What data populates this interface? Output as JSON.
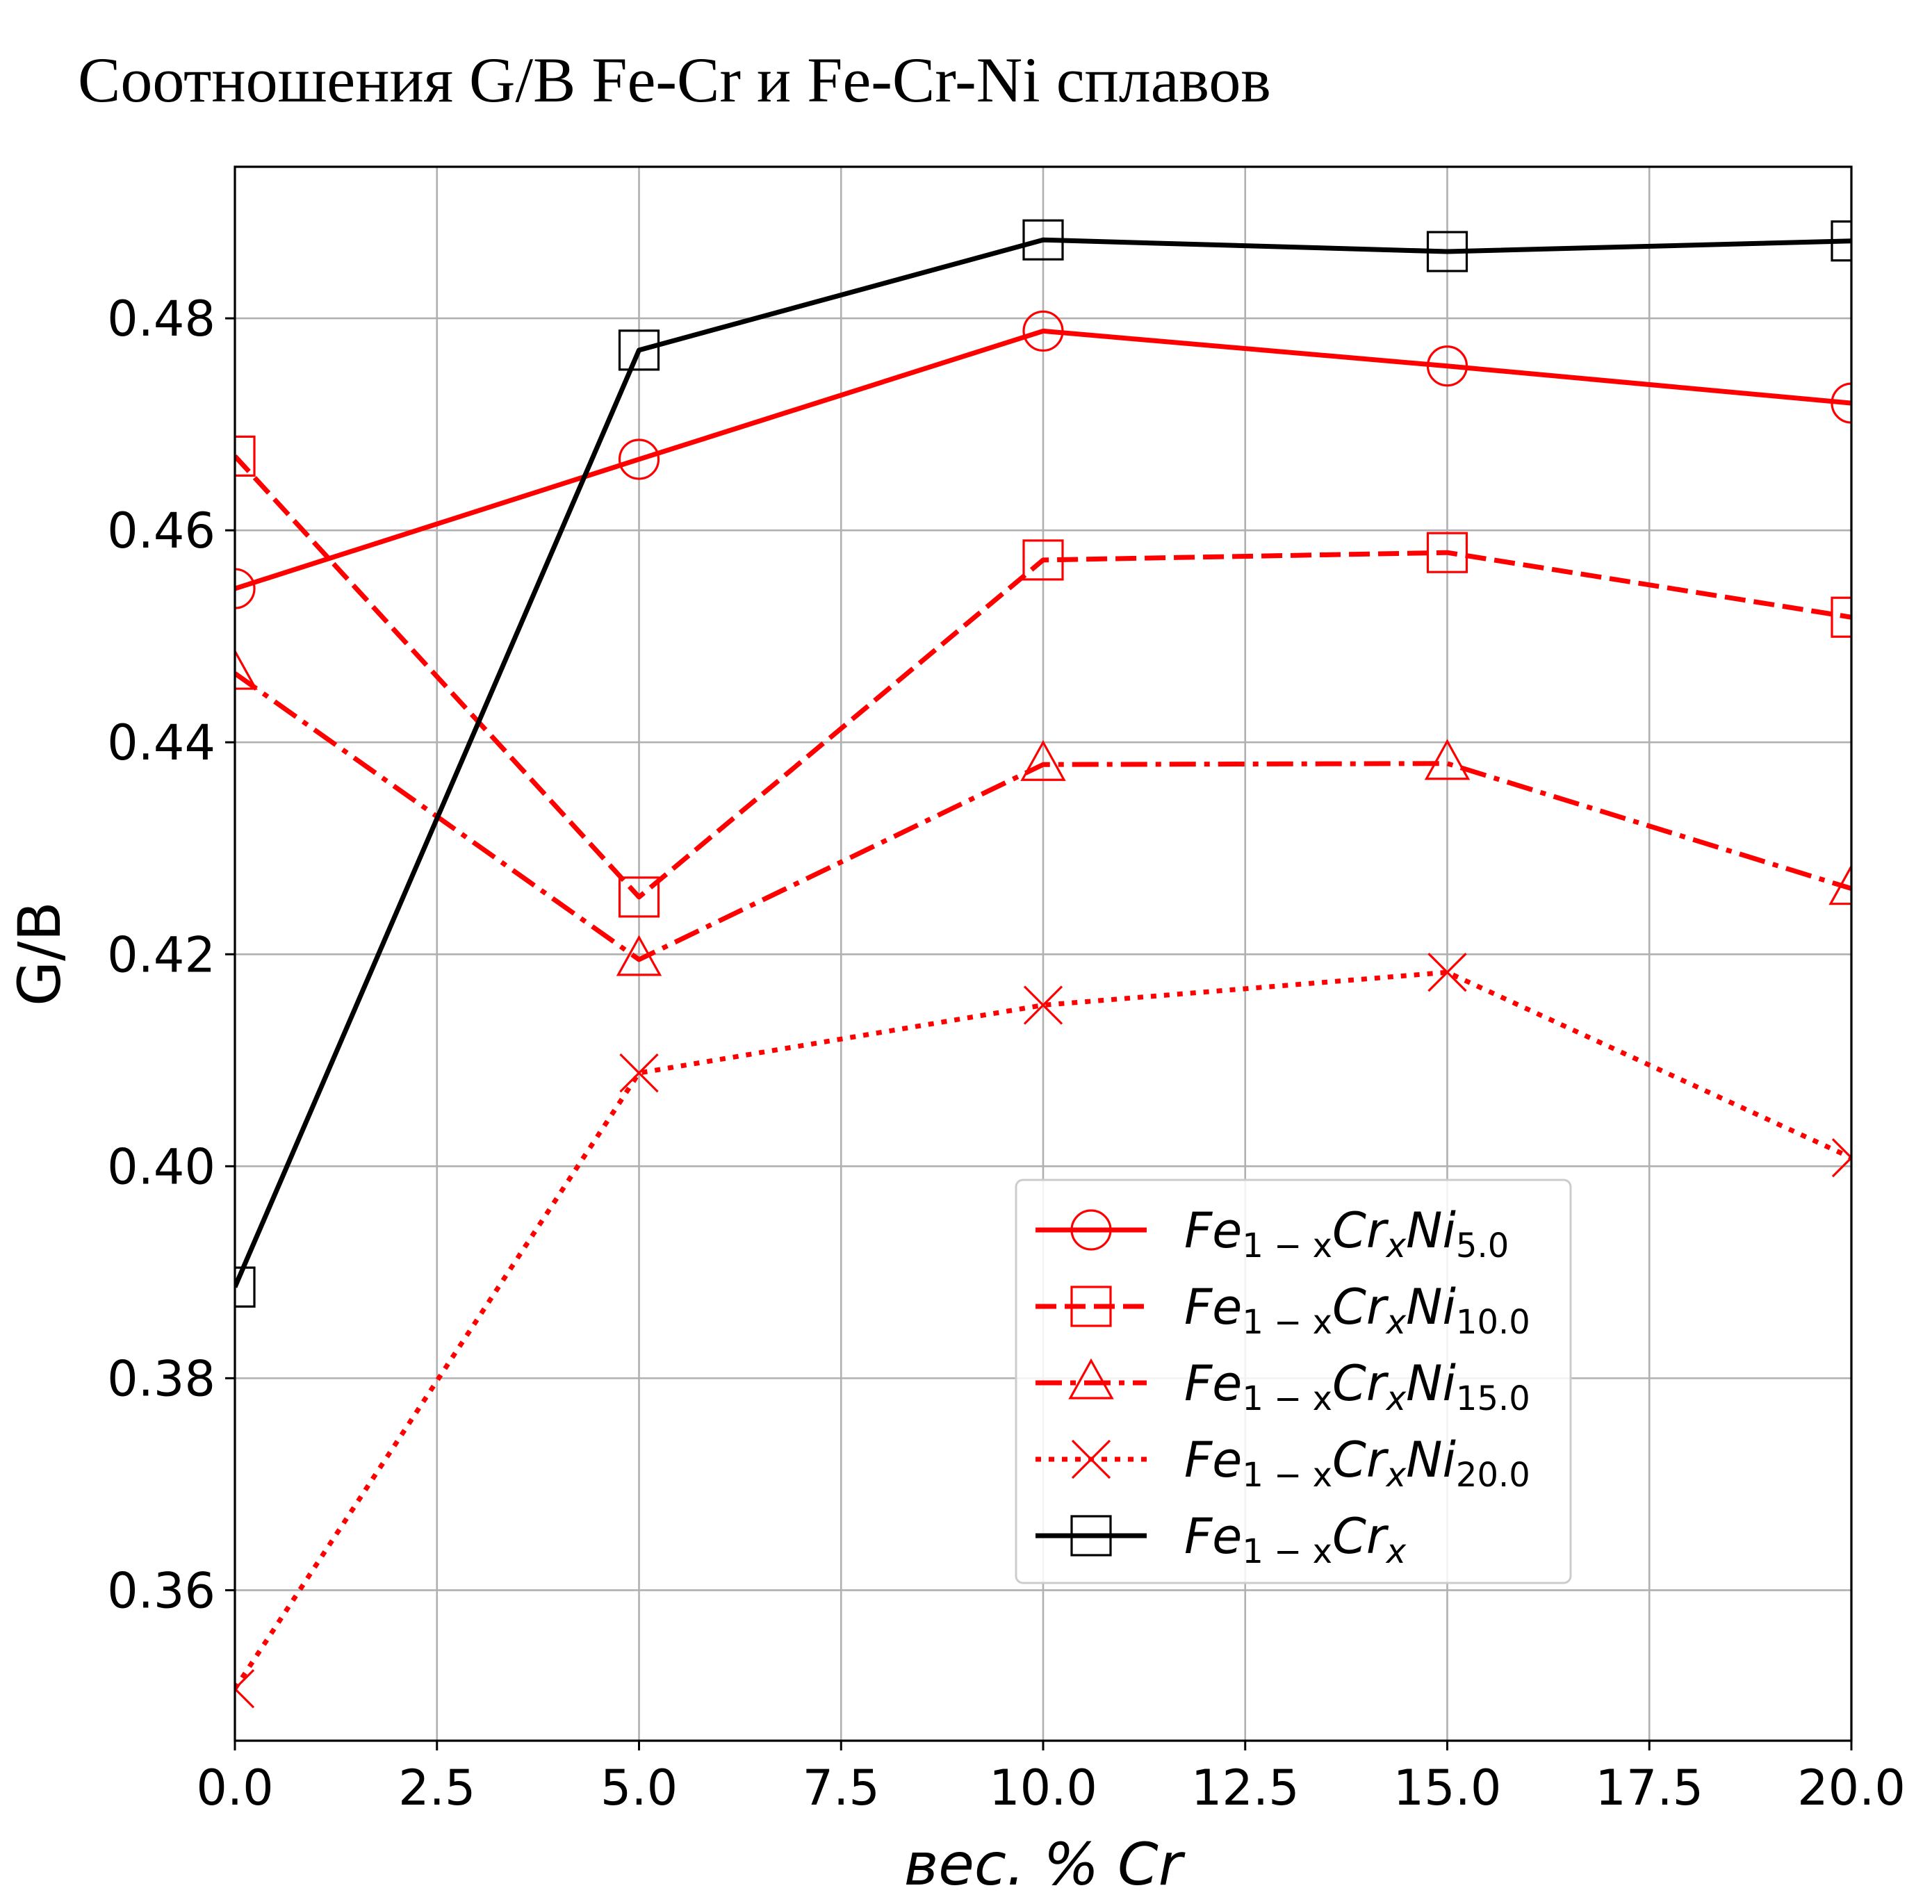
{
  "chart_data": {
    "type": "line",
    "title": "Соотношения G/B Fe-Cr и Fe-Cr-Ni сплавов",
    "xlabel": "вес. % Cr",
    "ylabel": "G/B",
    "xlim": [
      0,
      20
    ],
    "ylim": [
      0.3458,
      0.4943
    ],
    "grid": true,
    "legend_position": "lower-right",
    "x_ticks": [
      "0.0",
      "2.5",
      "5.0",
      "7.5",
      "10.0",
      "12.5",
      "15.0",
      "17.5",
      "20.0"
    ],
    "y_ticks": [
      "0.36",
      "0.38",
      "0.40",
      "0.42",
      "0.44",
      "0.46",
      "0.48"
    ],
    "x": [
      0,
      5,
      10,
      15,
      20
    ],
    "series": [
      {
        "name": "Fe1−xCrxNi5.0",
        "legend": {
          "base": "Fe",
          "sub1": "1 − x",
          "mid": "Cr",
          "sub2": "x",
          "tail": "Ni",
          "sub3": "5.0"
        },
        "values": [
          0.4545,
          0.4667,
          0.4788,
          0.4755,
          0.472
        ],
        "color": "#ff0000",
        "linestyle": "solid",
        "marker": "circle"
      },
      {
        "name": "Fe1−xCrxNi10.0",
        "legend": {
          "base": "Fe",
          "sub1": "1 − x",
          "mid": "Cr",
          "sub2": "x",
          "tail": "Ni",
          "sub3": "10.0"
        },
        "values": [
          0.467,
          0.4254,
          0.4572,
          0.4579,
          0.4518
        ],
        "color": "#ff0000",
        "linestyle": "dashed",
        "marker": "square"
      },
      {
        "name": "Fe1−xCrxNi15.0",
        "legend": {
          "base": "Fe",
          "sub1": "1 − x",
          "mid": "Cr",
          "sub2": "x",
          "tail": "Ni",
          "sub3": "15.0"
        },
        "values": [
          0.4465,
          0.4195,
          0.4379,
          0.438,
          0.4262
        ],
        "color": "#ff0000",
        "linestyle": "dashdot",
        "marker": "triangle"
      },
      {
        "name": "Fe1−xCrxNi20.0",
        "legend": {
          "base": "Fe",
          "sub1": "1 − x",
          "mid": "Cr",
          "sub2": "x",
          "tail": "Ni",
          "sub3": "20.0"
        },
        "values": [
          0.3507,
          0.4088,
          0.4152,
          0.4183,
          0.4008
        ],
        "color": "#ff0000",
        "linestyle": "dotted",
        "marker": "x"
      },
      {
        "name": "Fe1−xCrx",
        "legend": {
          "base": "Fe",
          "sub1": "1 − x",
          "mid": "Cr",
          "sub2": "x",
          "tail": "",
          "sub3": ""
        },
        "values": [
          0.3886,
          0.477,
          0.4874,
          0.4863,
          0.4873
        ],
        "color": "#000000",
        "linestyle": "solid",
        "marker": "square"
      }
    ]
  }
}
